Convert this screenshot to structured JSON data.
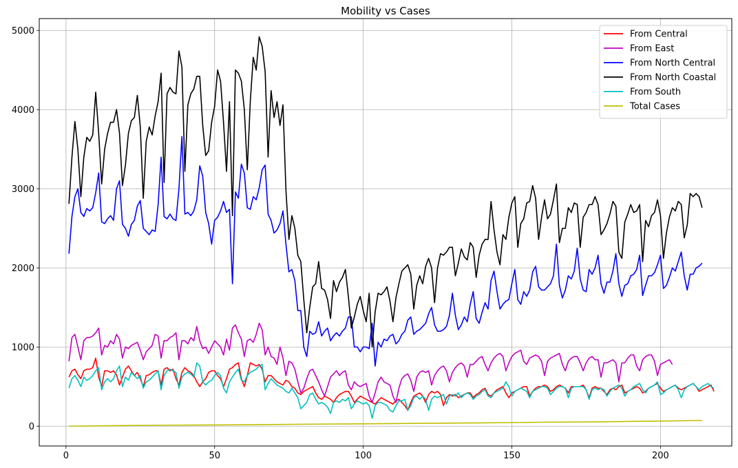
{
  "chart_data": {
    "type": "line",
    "title": "Mobility vs Cases",
    "xlabel": "",
    "ylabel": "",
    "xlim": [
      -9,
      224
    ],
    "ylim": [
      -250,
      5150
    ],
    "xticks": [
      0,
      50,
      100,
      150,
      200
    ],
    "yticks": [
      0,
      1000,
      2000,
      3000,
      4000,
      5000
    ],
    "grid": true,
    "legend": "top-right",
    "series": [
      {
        "name": "From Central",
        "color": "#ff0000",
        "x_start": 1,
        "values": [
          620,
          700,
          720,
          650,
          600,
          700,
          720,
          720,
          740,
          860,
          620,
          500,
          700,
          700,
          680,
          700,
          650,
          520,
          620,
          720,
          760,
          700,
          640,
          680,
          600,
          500,
          640,
          650,
          680,
          700,
          700,
          520,
          720,
          740,
          700,
          720,
          600,
          520,
          680,
          740,
          700,
          680,
          640,
          560,
          500,
          560,
          600,
          680,
          700,
          700,
          640,
          600,
          500,
          600,
          720,
          740,
          780,
          800,
          600,
          500,
          640,
          800,
          780,
          760,
          780,
          720,
          560,
          640,
          640,
          600,
          560,
          540,
          520,
          580,
          560,
          500,
          480,
          420,
          400,
          440,
          460,
          480,
          500,
          420,
          360,
          340,
          380,
          360,
          340,
          300,
          360,
          400,
          420,
          440,
          440,
          380,
          300,
          340,
          380,
          360,
          340,
          320,
          300,
          280,
          320,
          360,
          340,
          320,
          300,
          280,
          320,
          340,
          300,
          260,
          200,
          300,
          380,
          400,
          420,
          380,
          300,
          400,
          440,
          420,
          440,
          400,
          260,
          360,
          400,
          380,
          400,
          360,
          380,
          400,
          420,
          420,
          360,
          400,
          420,
          460,
          480,
          400,
          380,
          420,
          460,
          480,
          500,
          420,
          360,
          420,
          440,
          460,
          480,
          500,
          500,
          380,
          440,
          480,
          500,
          500,
          520,
          500,
          440,
          460,
          500,
          520,
          500,
          480,
          420,
          500,
          500,
          500,
          500,
          520,
          460,
          360,
          480,
          500,
          480,
          480,
          440,
          400,
          460,
          480,
          460,
          500,
          520,
          420,
          440,
          460,
          480,
          500,
          480,
          420,
          440,
          480,
          500,
          520,
          540,
          480,
          440,
          460,
          480,
          500,
          520,
          480,
          460,
          480,
          500,
          520,
          540,
          500,
          440,
          460,
          480,
          500,
          520,
          440
        ]
      },
      {
        "name": "From East",
        "color": "#bf00bf",
        "x_start": 1,
        "values": [
          820,
          1120,
          1160,
          1000,
          840,
          1080,
          1120,
          1120,
          1140,
          1180,
          1240,
          900,
          1020,
          1000,
          1080,
          1040,
          1160,
          1100,
          860,
          1000,
          980,
          1020,
          1040,
          1060,
          960,
          840,
          940,
          980,
          1020,
          1160,
          1140,
          860,
          1080,
          1080,
          1120,
          1140,
          1180,
          840,
          1080,
          1080,
          1040,
          1120,
          1080,
          1260,
          1080,
          980,
          1000,
          920,
          1000,
          1080,
          1040,
          1000,
          900,
          1100,
          960,
          1240,
          1280,
          1180,
          1100,
          880,
          1080,
          1100,
          1060,
          1160,
          1300,
          1220,
          900,
          1000,
          880,
          860,
          780,
          1000,
          860,
          640,
          820,
          800,
          720,
          560,
          420,
          480,
          600,
          700,
          720,
          640,
          560,
          460,
          380,
          500,
          620,
          660,
          700,
          640,
          680,
          700,
          520,
          460,
          560,
          520,
          500,
          520,
          540,
          380,
          300,
          420,
          560,
          620,
          560,
          540,
          520,
          380,
          300,
          480,
          600,
          640,
          660,
          580,
          440,
          620,
          680,
          700,
          680,
          700,
          520,
          640,
          700,
          740,
          760,
          700,
          560,
          680,
          740,
          780,
          800,
          760,
          620,
          780,
          780,
          820,
          860,
          880,
          780,
          700,
          800,
          860,
          900,
          920,
          880,
          700,
          800,
          880,
          920,
          940,
          960,
          820,
          780,
          860,
          880,
          900,
          880,
          820,
          640,
          820,
          860,
          880,
          900,
          920,
          780,
          700,
          820,
          860,
          880,
          880,
          800,
          700,
          800,
          860,
          880,
          840,
          840,
          620,
          800,
          800,
          820,
          840,
          800,
          560,
          800,
          800,
          860,
          900,
          900,
          760,
          700,
          840,
          880,
          900,
          900,
          820,
          640,
          780,
          800,
          820,
          840,
          780
        ]
      },
      {
        "name": "From North Central",
        "color": "#0000ff",
        "x_start": 1,
        "values": [
          2180,
          2650,
          2900,
          3000,
          2700,
          2650,
          2750,
          2720,
          2760,
          2950,
          3200,
          2580,
          2560,
          2620,
          2660,
          2600,
          3000,
          3100,
          2550,
          2500,
          2400,
          2550,
          2600,
          2780,
          2850,
          2500,
          2460,
          2420,
          2480,
          2460,
          2800,
          3400,
          2650,
          2620,
          2680,
          2620,
          2600,
          3000,
          3660,
          2680,
          2700,
          2660,
          2720,
          2860,
          3290,
          3160,
          2700,
          2560,
          2300,
          2600,
          2640,
          2720,
          2840,
          2700,
          2740,
          1800,
          2960,
          2880,
          3310,
          3200,
          2760,
          2740,
          2900,
          2860,
          3010,
          3240,
          3300,
          2680,
          2600,
          2440,
          2480,
          2560,
          2720,
          2300,
          1950,
          1980,
          1840,
          1460,
          1460,
          1000,
          880,
          1200,
          1160,
          1180,
          1320,
          1140,
          1200,
          1240,
          1080,
          1140,
          1180,
          1140,
          1200,
          1240,
          1380,
          1380,
          1000,
          1000,
          940,
          1000,
          1000,
          980,
          1300,
          760,
          1060,
          1000,
          1100,
          1080,
          1140,
          1160,
          1040,
          1080,
          1160,
          1200,
          1340,
          1380,
          1160,
          1200,
          1220,
          1260,
          1300,
          1420,
          1500,
          1280,
          1200,
          1200,
          1220,
          1260,
          1400,
          1680,
          1400,
          1220,
          1280,
          1380,
          1320,
          1540,
          1700,
          1360,
          1300,
          1440,
          1560,
          1480,
          1840,
          1960,
          1700,
          1480,
          1540,
          1580,
          1600,
          1800,
          1980,
          1600,
          1540,
          1700,
          1640,
          1720,
          1950,
          2020,
          1760,
          1720,
          1720,
          1760,
          1800,
          1900,
          2300,
          1780,
          1620,
          1720,
          1900,
          1860,
          1960,
          2250,
          1860,
          1720,
          1700,
          1980,
          1920,
          2000,
          2160,
          1800,
          1680,
          1820,
          1820,
          1960,
          2180,
          1800,
          1640,
          1780,
          1800,
          1900,
          1920,
          1980,
          2160,
          1650,
          1780,
          1900,
          1900,
          1940,
          2040,
          2160,
          1740,
          1780,
          1880,
          2000,
          1960,
          2080,
          2200,
          1900,
          1720,
          1920,
          1920,
          2000,
          2020,
          2060
        ]
      },
      {
        "name": "From North Coastal",
        "color": "#000000",
        "x_start": 1,
        "values": [
          2810,
          3400,
          3850,
          3500,
          2900,
          3400,
          3650,
          3600,
          3680,
          4220,
          3700,
          3060,
          3500,
          3700,
          3840,
          3840,
          4000,
          3700,
          3040,
          3300,
          3700,
          3860,
          3900,
          4180,
          3780,
          2880,
          3600,
          3780,
          3680,
          3920,
          4100,
          4460,
          3080,
          4200,
          4280,
          4220,
          4200,
          4740,
          4540,
          3220,
          4060,
          4200,
          4260,
          4420,
          4420,
          3800,
          3420,
          3480,
          3840,
          4040,
          4500,
          4360,
          3840,
          3220,
          4100,
          2660,
          4500,
          4460,
          4360,
          4000,
          3240,
          4100,
          4660,
          4500,
          4920,
          4800,
          4480,
          3400,
          4240,
          3900,
          4100,
          3800,
          4060,
          2980,
          2360,
          2660,
          2500,
          2160,
          2080,
          1600,
          1180,
          1500,
          1760,
          1800,
          2080,
          1740,
          1720,
          1600,
          1360,
          1840,
          1700,
          1820,
          1880,
          1980,
          1640,
          1240,
          1380,
          1540,
          1640,
          1460,
          1320,
          1680,
          1000,
          1440,
          1680,
          1660,
          1700,
          1760,
          1580,
          1320,
          1620,
          1800,
          1960,
          2000,
          2040,
          1920,
          1480,
          1780,
          1900,
          1800,
          2020,
          2120,
          2000,
          1560,
          2000,
          2180,
          2160,
          2200,
          2260,
          2260,
          1900,
          2060,
          2240,
          2140,
          2100,
          2320,
          2260,
          1880,
          2160,
          2300,
          2360,
          2360,
          2840,
          2480,
          2200,
          2040,
          2420,
          2360,
          2640,
          2820,
          2900,
          2260,
          2560,
          2620,
          2820,
          2840,
          3040,
          2880,
          2360,
          2640,
          2860,
          2620,
          2680,
          2860,
          3060,
          2320,
          2500,
          2500,
          2760,
          2700,
          2820,
          2800,
          2260,
          2640,
          2700,
          2800,
          2800,
          2900,
          2800,
          2420,
          2480,
          2560,
          2680,
          2840,
          2780,
          2200,
          2120,
          2580,
          2680,
          2800,
          2700,
          2720,
          2800,
          2080,
          2600,
          2520,
          2660,
          2700,
          2860,
          2660,
          2120,
          2440,
          2640,
          2760,
          2720,
          2840,
          2800,
          2380,
          2540,
          2940,
          2900,
          2940,
          2900,
          2760
        ]
      },
      {
        "name": "From South",
        "color": "#00bfbf",
        "x_start": 1,
        "values": [
          480,
          600,
          640,
          580,
          500,
          620,
          580,
          600,
          640,
          700,
          740,
          460,
          560,
          600,
          560,
          600,
          700,
          760,
          500,
          620,
          580,
          680,
          640,
          600,
          640,
          480,
          560,
          580,
          620,
          660,
          700,
          460,
          640,
          700,
          720,
          700,
          680,
          480,
          620,
          660,
          680,
          660,
          620,
          800,
          760,
          560,
          520,
          560,
          580,
          640,
          680,
          640,
          480,
          420,
          560,
          620,
          680,
          720,
          580,
          560,
          640,
          680,
          700,
          720,
          760,
          780,
          460,
          540,
          600,
          560,
          520,
          500,
          480,
          440,
          420,
          480,
          420,
          360,
          220,
          260,
          300,
          400,
          420,
          340,
          280,
          300,
          280,
          240,
          160,
          300,
          320,
          300,
          340,
          320,
          360,
          220,
          280,
          320,
          300,
          280,
          300,
          260,
          100,
          260,
          300,
          300,
          280,
          260,
          200,
          180,
          260,
          320,
          320,
          340,
          200,
          260,
          360,
          380,
          340,
          380,
          340,
          200,
          340,
          380,
          360,
          380,
          400,
          280,
          380,
          400,
          380,
          420,
          360,
          400,
          420,
          400,
          340,
          380,
          400,
          440,
          460,
          380,
          360,
          420,
          440,
          460,
          480,
          560,
          500,
          380,
          440,
          460,
          480,
          460,
          440,
          360,
          440,
          460,
          480,
          500,
          500,
          480,
          400,
          440,
          480,
          500,
          500,
          480,
          360,
          480,
          500,
          500,
          500,
          500,
          460,
          340,
          460,
          480,
          460,
          480,
          460,
          380,
          440,
          480,
          500,
          520,
          480,
          380,
          440,
          460,
          500,
          520,
          540,
          460,
          420,
          480,
          500,
          520,
          560,
          400,
          420,
          460,
          480,
          500,
          520,
          460,
          360,
          460,
          500,
          520,
          540,
          500,
          460,
          500,
          520,
          540,
          500,
          480
        ]
      },
      {
        "name": "Total Cases",
        "color": "#bfbf00",
        "x": [
          1,
          20,
          40,
          60,
          80,
          100,
          120,
          140,
          160,
          180,
          200,
          214
        ],
        "values": [
          0,
          8,
          14,
          18,
          25,
          30,
          36,
          42,
          50,
          55,
          65,
          72
        ]
      }
    ]
  }
}
